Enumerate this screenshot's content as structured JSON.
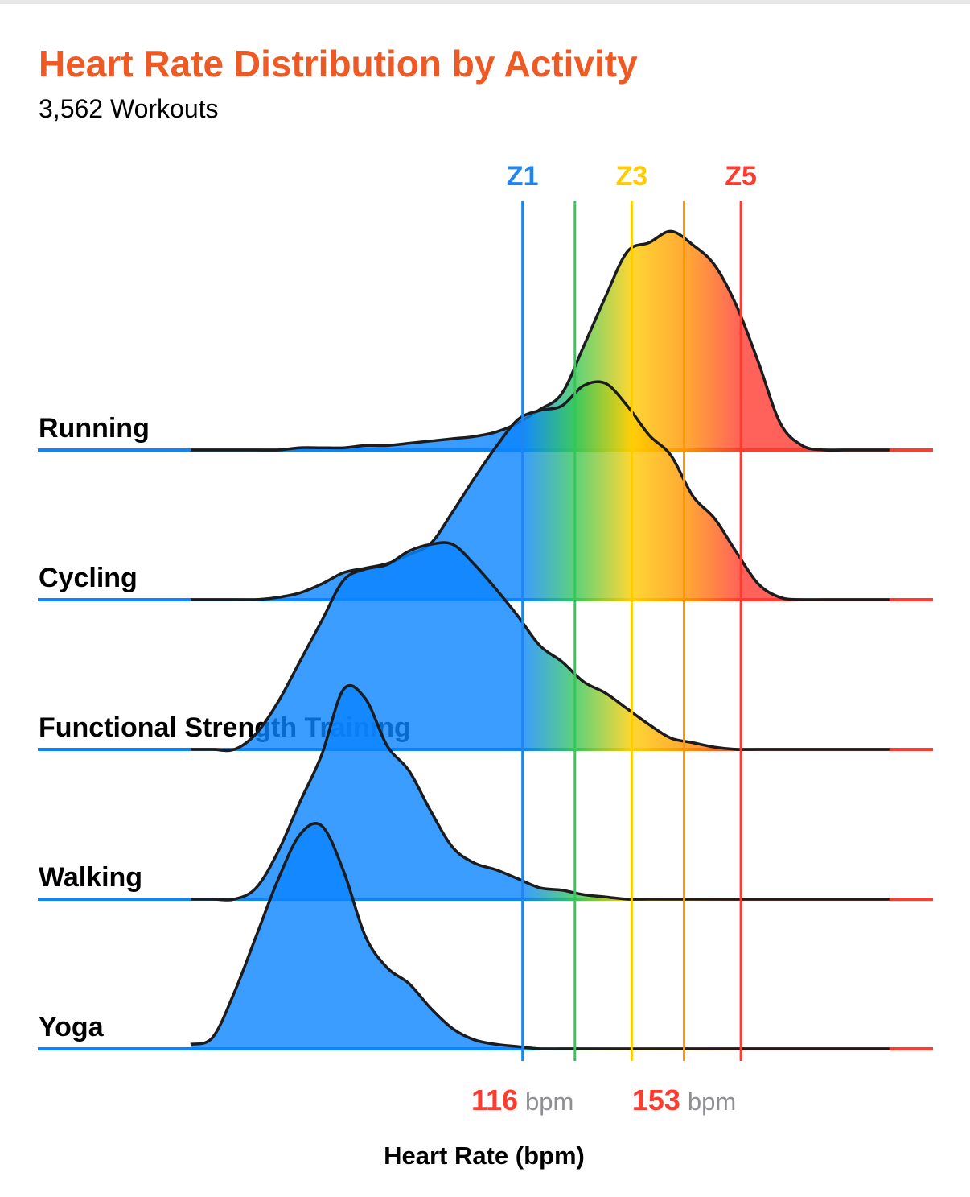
{
  "chart_data": {
    "type": "ridgeline",
    "title": "Heart Rate Distribution by Activity",
    "subtitle": "3,562 Workouts",
    "x_label": "Heart Rate (bpm)",
    "xlim": [
      5,
      210
    ],
    "x": [
      40,
      45,
      50,
      55,
      60,
      65,
      70,
      75,
      80,
      85,
      90,
      95,
      100,
      105,
      110,
      115,
      120,
      125,
      130,
      135,
      140,
      145,
      150,
      155,
      160,
      165,
      170,
      175,
      180,
      185,
      190,
      195,
      200
    ],
    "base_color": "#0a84ff",
    "zones": {
      "labels": [
        "Z1",
        null,
        "Z3",
        null,
        "Z5"
      ],
      "values": [
        116,
        128,
        141,
        153,
        166
      ],
      "colors": [
        "#1f86f0",
        "#34c759",
        "#ffcc00",
        "#ff9500",
        "#ff3b30"
      ]
    },
    "x_annotations": [
      {
        "value": 116,
        "unit": "bpm"
      },
      {
        "value": 153,
        "unit": "bpm"
      }
    ],
    "series": [
      {
        "name": "Running",
        "values": [
          0,
          0,
          0,
          0,
          0,
          0.01,
          0.01,
          0.01,
          0.02,
          0.02,
          0.03,
          0.04,
          0.05,
          0.06,
          0.08,
          0.12,
          0.18,
          0.25,
          0.46,
          0.68,
          0.88,
          0.92,
          0.97,
          0.91,
          0.82,
          0.64,
          0.39,
          0.12,
          0.02,
          0,
          0,
          0,
          0
        ]
      },
      {
        "name": "Cycling",
        "values": [
          0,
          0,
          0,
          0,
          0.01,
          0.03,
          0.07,
          0.12,
          0.14,
          0.16,
          0.2,
          0.25,
          0.39,
          0.54,
          0.68,
          0.8,
          0.84,
          0.86,
          0.95,
          0.96,
          0.86,
          0.73,
          0.64,
          0.46,
          0.36,
          0.21,
          0.07,
          0.01,
          0,
          0,
          0,
          0,
          0
        ]
      },
      {
        "name": "Functional Strength Training",
        "values": [
          0,
          0,
          0,
          0.07,
          0.21,
          0.39,
          0.57,
          0.75,
          0.8,
          0.82,
          0.88,
          0.91,
          0.91,
          0.82,
          0.71,
          0.59,
          0.46,
          0.39,
          0.3,
          0.25,
          0.18,
          0.11,
          0.05,
          0.03,
          0.01,
          0,
          0,
          0,
          0,
          0,
          0,
          0,
          0
        ]
      },
      {
        "name": "Walking",
        "values": [
          0,
          0,
          0,
          0.05,
          0.21,
          0.43,
          0.64,
          0.93,
          0.89,
          0.68,
          0.57,
          0.39,
          0.23,
          0.16,
          0.13,
          0.09,
          0.05,
          0.04,
          0.02,
          0.01,
          0,
          0,
          0,
          0,
          0,
          0,
          0,
          0,
          0,
          0,
          0,
          0,
          0
        ]
      },
      {
        "name": "Yoga",
        "values": [
          0.02,
          0.05,
          0.25,
          0.5,
          0.75,
          0.95,
          0.99,
          0.79,
          0.5,
          0.36,
          0.29,
          0.18,
          0.09,
          0.04,
          0.02,
          0.01,
          0,
          0,
          0,
          0,
          0,
          0,
          0,
          0,
          0,
          0,
          0,
          0,
          0,
          0,
          0,
          0,
          0
        ]
      }
    ]
  }
}
